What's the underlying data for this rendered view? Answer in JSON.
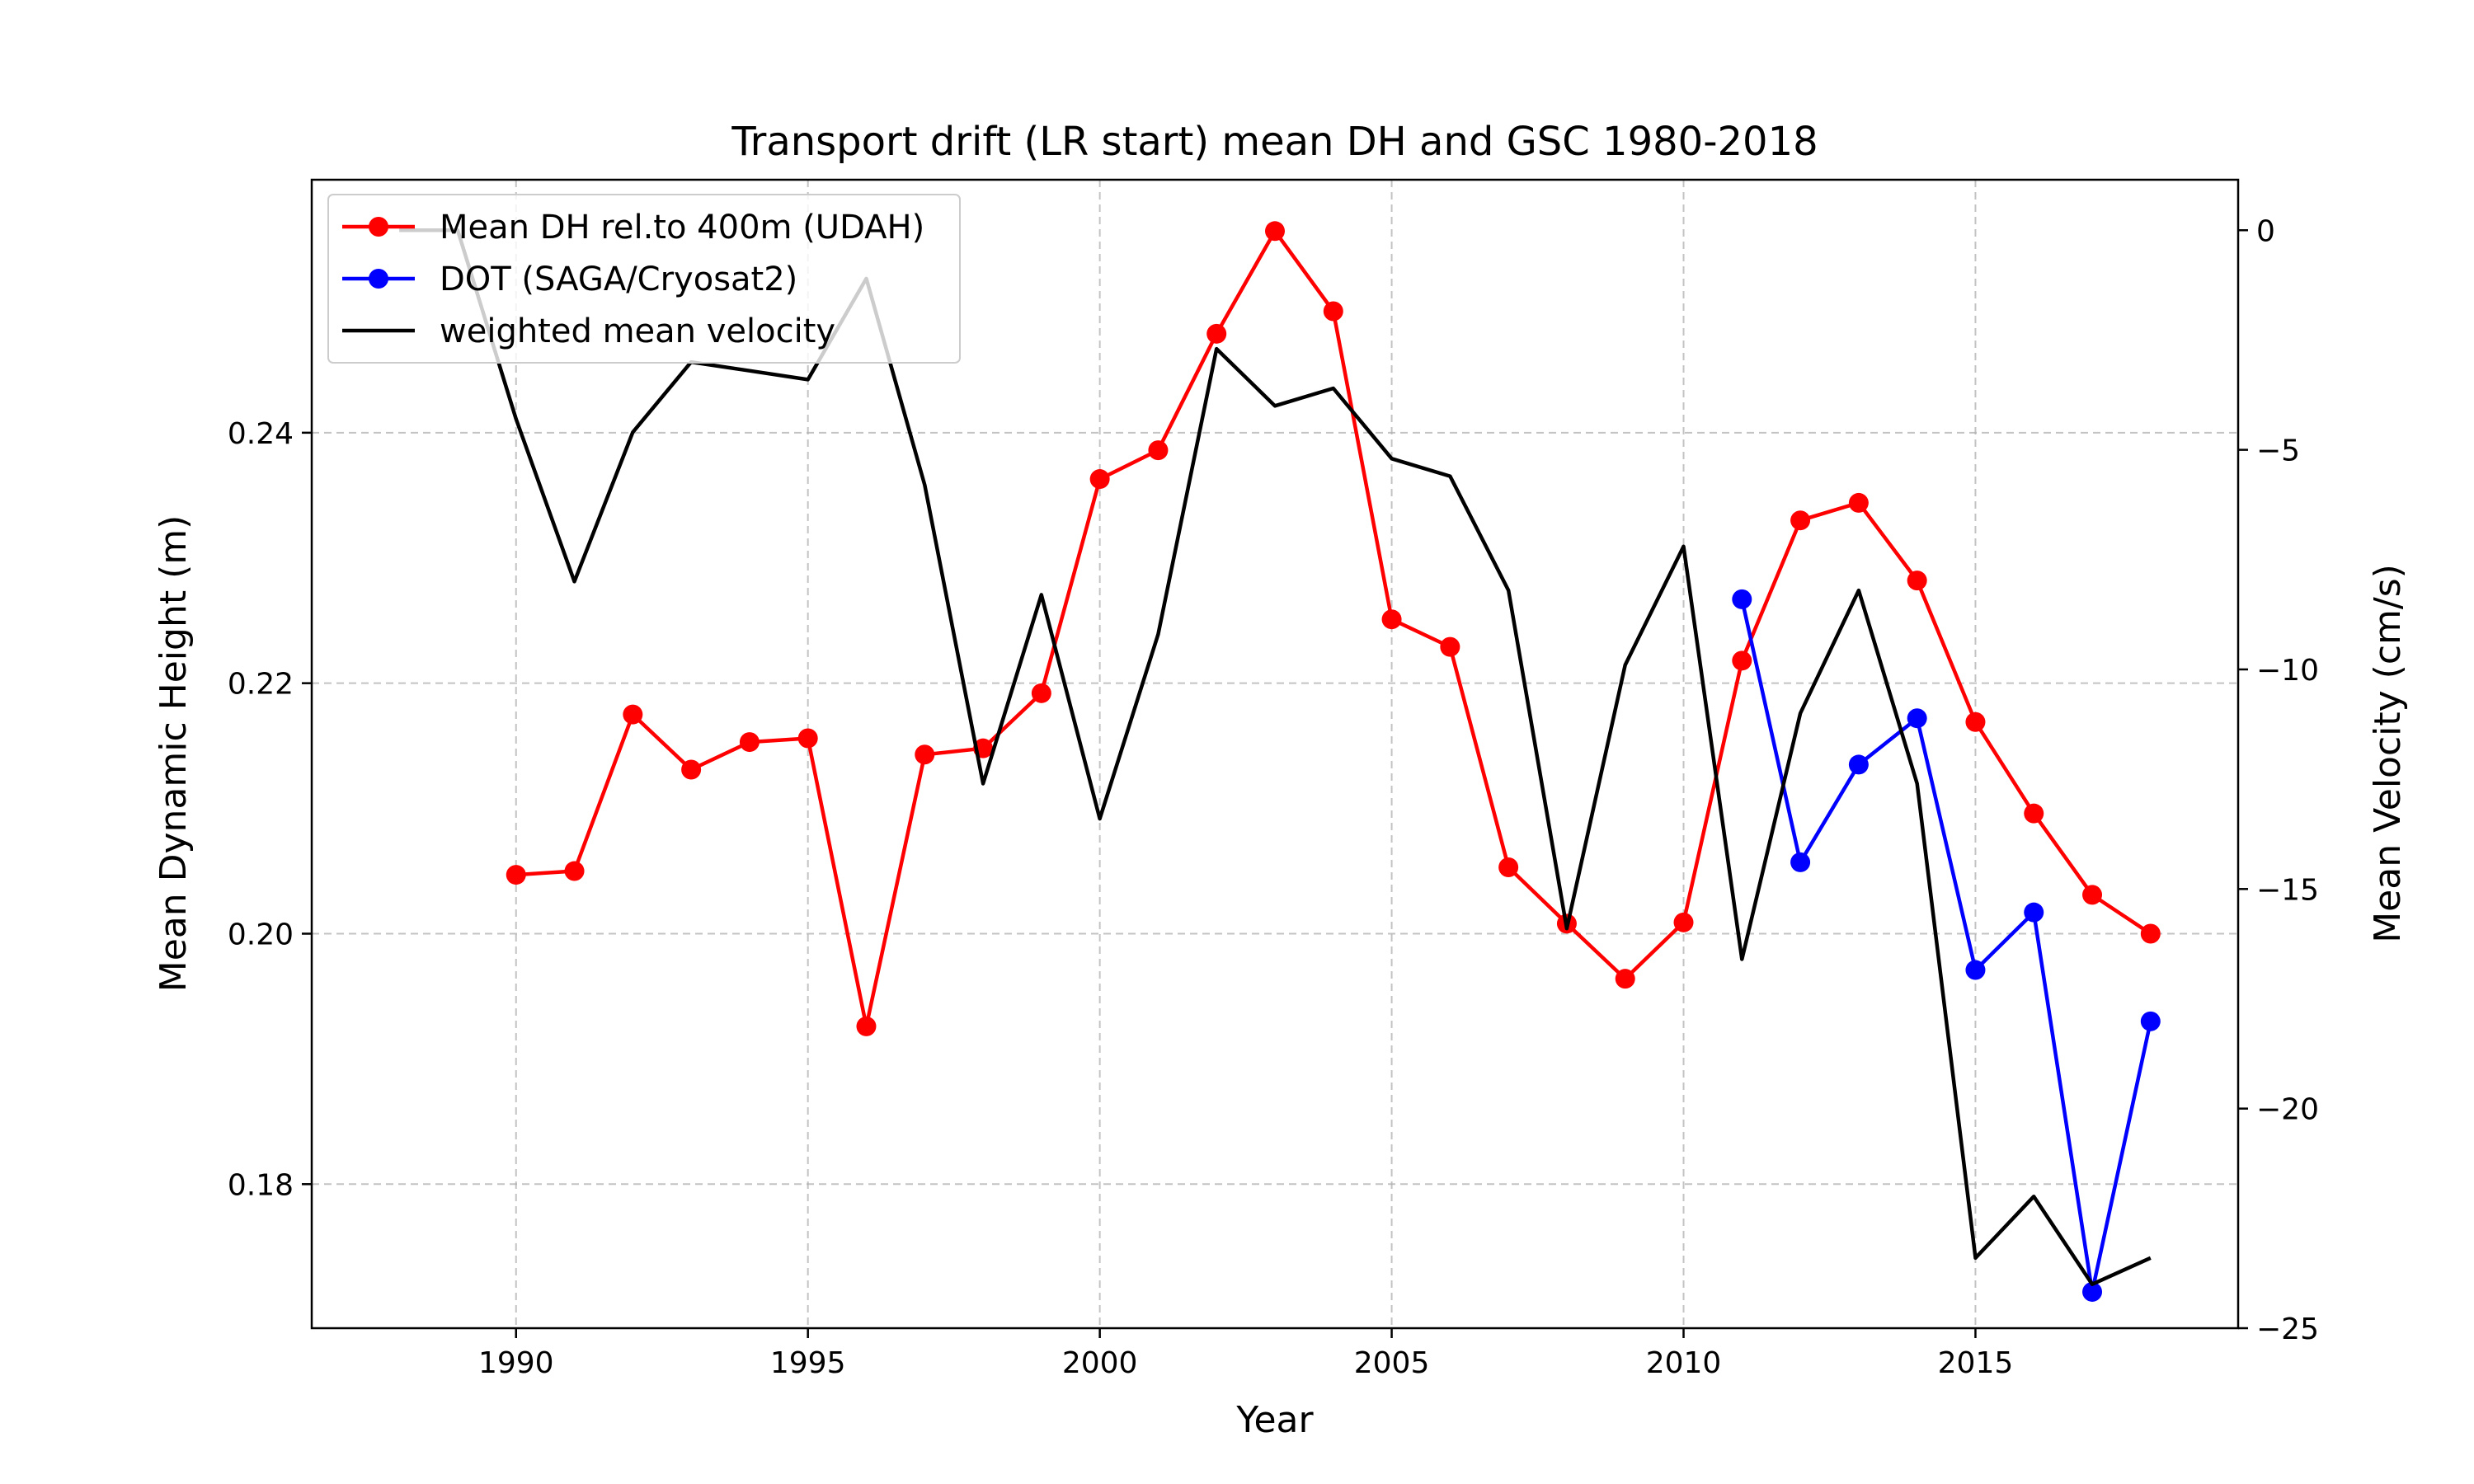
{
  "chart_data": {
    "type": "line",
    "title": "Transport drift (LR start) mean DH and GSC 1980-2018",
    "xlabel": "Year",
    "ylabel_left": "Mean Dynamic Height (m)",
    "ylabel_right": "Mean Velocity (cm/s)",
    "xlim": [
      1986.5,
      2019.5
    ],
    "ylim_left": [
      0.1685,
      0.2602
    ],
    "ylim_right": [
      -25.0,
      1.15
    ],
    "x_ticks": [
      1990,
      1995,
      2000,
      2005,
      2010,
      2015
    ],
    "x_tick_labels": [
      "1990",
      "1995",
      "2000",
      "2005",
      "2010",
      "2015"
    ],
    "y_left_ticks": [
      0.18,
      0.2,
      0.22,
      0.24
    ],
    "y_left_tick_labels": [
      "0.18",
      "0.20",
      "0.22",
      "0.24"
    ],
    "y_right_ticks": [
      -25,
      -20,
      -15,
      -10,
      -5,
      0
    ],
    "y_right_tick_labels": [
      "−25",
      "−20",
      "−15",
      "−10",
      "−5",
      "0"
    ],
    "grid": true,
    "legend_position": "top-left",
    "series": [
      {
        "name": "Mean DH rel.to 400m (UDAH)",
        "axis": "left",
        "color": "#ff0000",
        "marker": "circle",
        "x": [
          1990,
          1991,
          1992,
          1993,
          1994,
          1995,
          1996,
          1997,
          1998,
          1999,
          2000,
          2001,
          2002,
          2003,
          2004,
          2005,
          2006,
          2007,
          2008,
          2009,
          2010,
          2011,
          2012,
          2013,
          2014,
          2015,
          2016,
          2017,
          2018
        ],
        "y": [
          0.2047,
          0.205,
          0.2175,
          0.2131,
          0.2153,
          0.2156,
          0.1926,
          0.2143,
          0.2148,
          0.2192,
          0.2363,
          0.2386,
          0.2479,
          0.2561,
          0.2497,
          0.2251,
          0.2229,
          0.2053,
          0.2008,
          0.1964,
          0.2009,
          0.2218,
          0.233,
          0.2344,
          0.2282,
          0.2169,
          0.2096,
          0.2031,
          0.2
        ]
      },
      {
        "name": "DOT (SAGA/Cryosat2)",
        "axis": "left",
        "color": "#0000ff",
        "marker": "circle",
        "x": [
          2011,
          2012,
          2013,
          2014,
          2015,
          2016,
          2017,
          2018
        ],
        "y": [
          0.2267,
          0.2057,
          0.2135,
          0.2172,
          0.1971,
          0.2017,
          0.1714,
          0.193
        ]
      },
      {
        "name": "weighted mean velocity",
        "axis": "right",
        "color": "#000000",
        "marker": "none",
        "x": [
          1988,
          1989,
          1990,
          1991,
          1992,
          1993,
          1994,
          1995,
          1996,
          1997,
          1998,
          1999,
          2000,
          2001,
          2002,
          2003,
          2004,
          2005,
          2006,
          2007,
          2008,
          2009,
          2010,
          2011,
          2012,
          2013,
          2014,
          2015,
          2016,
          2017,
          2018
        ],
        "y": [
          0.0,
          0.0,
          -4.3,
          -8.0,
          -4.6,
          -3.0,
          -3.2,
          -3.4,
          -1.1,
          -5.8,
          -12.6,
          -8.3,
          -13.4,
          -9.2,
          -2.7,
          -4.0,
          -3.6,
          -5.2,
          -5.6,
          -8.2,
          -15.9,
          -9.9,
          -7.2,
          -16.6,
          -11.0,
          -8.2,
          -12.6,
          -23.4,
          -22.0,
          -24.0,
          -23.4
        ]
      }
    ]
  }
}
